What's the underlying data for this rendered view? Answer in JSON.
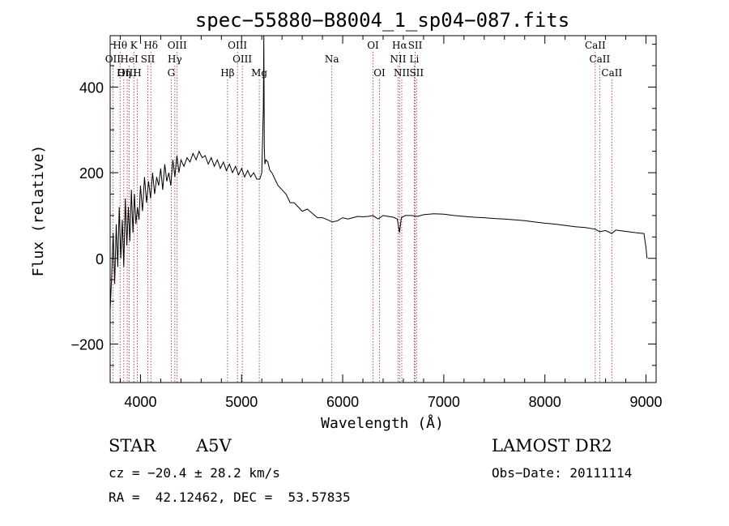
{
  "chart_data": {
    "type": "line",
    "title": "spec−55880−B8004_1_sp04−087.fits",
    "xlabel": "Wavelength (Å)",
    "ylabel": "Flux (relative)",
    "xlim": [
      3700,
      9100
    ],
    "ylim": [
      -290,
      520
    ],
    "xticks": [
      4000,
      5000,
      6000,
      7000,
      8000,
      9000
    ],
    "yticks": [
      -200,
      0,
      200,
      400
    ],
    "xtick_labels": [
      "4000",
      "5000",
      "6000",
      "7000",
      "8000",
      "9000"
    ],
    "ytick_labels": [
      "−200",
      "0",
      "200",
      "400"
    ],
    "grid": false,
    "spectrum": {
      "x": [
        3700,
        3715,
        3730,
        3745,
        3760,
        3775,
        3790,
        3805,
        3820,
        3835,
        3850,
        3865,
        3880,
        3895,
        3910,
        3925,
        3940,
        3955,
        3970,
        3985,
        4000,
        4020,
        4040,
        4060,
        4080,
        4100,
        4120,
        4140,
        4160,
        4180,
        4200,
        4220,
        4240,
        4260,
        4280,
        4300,
        4320,
        4340,
        4360,
        4380,
        4400,
        4430,
        4460,
        4490,
        4520,
        4550,
        4580,
        4610,
        4640,
        4670,
        4700,
        4730,
        4760,
        4790,
        4820,
        4850,
        4880,
        4910,
        4940,
        4970,
        5000,
        5030,
        5060,
        5090,
        5120,
        5150,
        5180,
        5200,
        5215,
        5220,
        5225,
        5230,
        5240,
        5260,
        5280,
        5300,
        5330,
        5360,
        5400,
        5440,
        5480,
        5520,
        5560,
        5600,
        5650,
        5700,
        5750,
        5800,
        5850,
        5900,
        5950,
        6000,
        6050,
        6100,
        6150,
        6200,
        6250,
        6300,
        6350,
        6400,
        6450,
        6500,
        6540,
        6562,
        6580,
        6620,
        6680,
        6740,
        6800,
        6900,
        7000,
        7100,
        7200,
        7300,
        7400,
        7500,
        7600,
        7700,
        7800,
        7900,
        8000,
        8100,
        8200,
        8300,
        8400,
        8500,
        8542,
        8600,
        8662,
        8700,
        8800,
        8900,
        8980,
        9000,
        9010
      ],
      "y": [
        -120,
        -40,
        60,
        -60,
        80,
        -20,
        120,
        0,
        90,
        -20,
        140,
        30,
        120,
        40,
        160,
        60,
        150,
        80,
        120,
        90,
        170,
        110,
        190,
        130,
        180,
        140,
        200,
        150,
        190,
        170,
        210,
        160,
        220,
        180,
        200,
        170,
        230,
        190,
        240,
        200,
        230,
        215,
        235,
        225,
        245,
        230,
        250,
        235,
        240,
        220,
        235,
        215,
        230,
        210,
        225,
        205,
        220,
        200,
        215,
        195,
        210,
        190,
        205,
        190,
        200,
        185,
        185,
        200,
        350,
        520,
        260,
        220,
        230,
        225,
        205,
        200,
        185,
        170,
        160,
        150,
        130,
        130,
        120,
        110,
        115,
        105,
        95,
        95,
        90,
        85,
        88,
        95,
        92,
        95,
        98,
        97,
        98,
        100,
        92,
        100,
        98,
        96,
        92,
        60,
        95,
        100,
        100,
        98,
        102,
        104,
        103,
        100,
        98,
        96,
        95,
        93,
        92,
        90,
        88,
        85,
        82,
        80,
        77,
        74,
        72,
        68,
        62,
        65,
        58,
        66,
        63,
        60,
        58,
        25,
        0
      ]
    },
    "line_markers": [
      {
        "label": "Hθ",
        "wavelength": 3798,
        "row": 0
      },
      {
        "label": "K",
        "wavelength": 3934,
        "row": 0
      },
      {
        "label": "Hδ",
        "wavelength": 4102,
        "row": 0
      },
      {
        "label": "OIII",
        "wavelength": 4363,
        "row": 0
      },
      {
        "label": "OIII",
        "wavelength": 4959,
        "row": 0
      },
      {
        "label": "OI",
        "wavelength": 6300,
        "row": 0
      },
      {
        "label": "Hα",
        "wavelength": 6563,
        "row": 0
      },
      {
        "label": "SII",
        "wavelength": 6717,
        "row": 0
      },
      {
        "label": "CaII",
        "wavelength": 8498,
        "row": 0
      },
      {
        "label": "OII",
        "wavelength": 3727,
        "row": 1
      },
      {
        "label": "HeI",
        "wavelength": 3889,
        "row": 1
      },
      {
        "label": "SII",
        "wavelength": 4072,
        "row": 1
      },
      {
        "label": "Hγ",
        "wavelength": 4340,
        "row": 1
      },
      {
        "label": "OIII",
        "wavelength": 5007,
        "row": 1
      },
      {
        "label": "Na",
        "wavelength": 5893,
        "row": 1
      },
      {
        "label": "NII",
        "wavelength": 6548,
        "row": 1
      },
      {
        "label": "Li",
        "wavelength": 6708,
        "row": 1
      },
      {
        "label": "CaII",
        "wavelength": 8542,
        "row": 1
      },
      {
        "label": "OIII",
        "wavelength": 3869,
        "row": 2
      },
      {
        "label": "Hη",
        "wavelength": 3835,
        "row": 2
      },
      {
        "label": "H",
        "wavelength": 3968,
        "row": 2
      },
      {
        "label": "G",
        "wavelength": 4304,
        "row": 2
      },
      {
        "label": "Hβ",
        "wavelength": 4861,
        "row": 2
      },
      {
        "label": "Mg",
        "wavelength": 5175,
        "row": 2
      },
      {
        "label": "OI",
        "wavelength": 6364,
        "row": 2
      },
      {
        "label": "NII",
        "wavelength": 6584,
        "row": 2
      },
      {
        "label": "SII",
        "wavelength": 6731,
        "row": 2
      },
      {
        "label": "CaII",
        "wavelength": 8662,
        "row": 2
      }
    ]
  },
  "info": {
    "object_class": "STAR",
    "subclass": "A5V",
    "survey": "LAMOST DR2",
    "redshift": "cz = −20.4 ± 28.2 km/s",
    "obs_date": "Obs−Date: 20111114",
    "coords": "RA =  42.12462, DEC =  53.57835"
  },
  "colors": {
    "spectrum": "#000000",
    "marker_line": "#a0282a",
    "axes": "#000000"
  }
}
